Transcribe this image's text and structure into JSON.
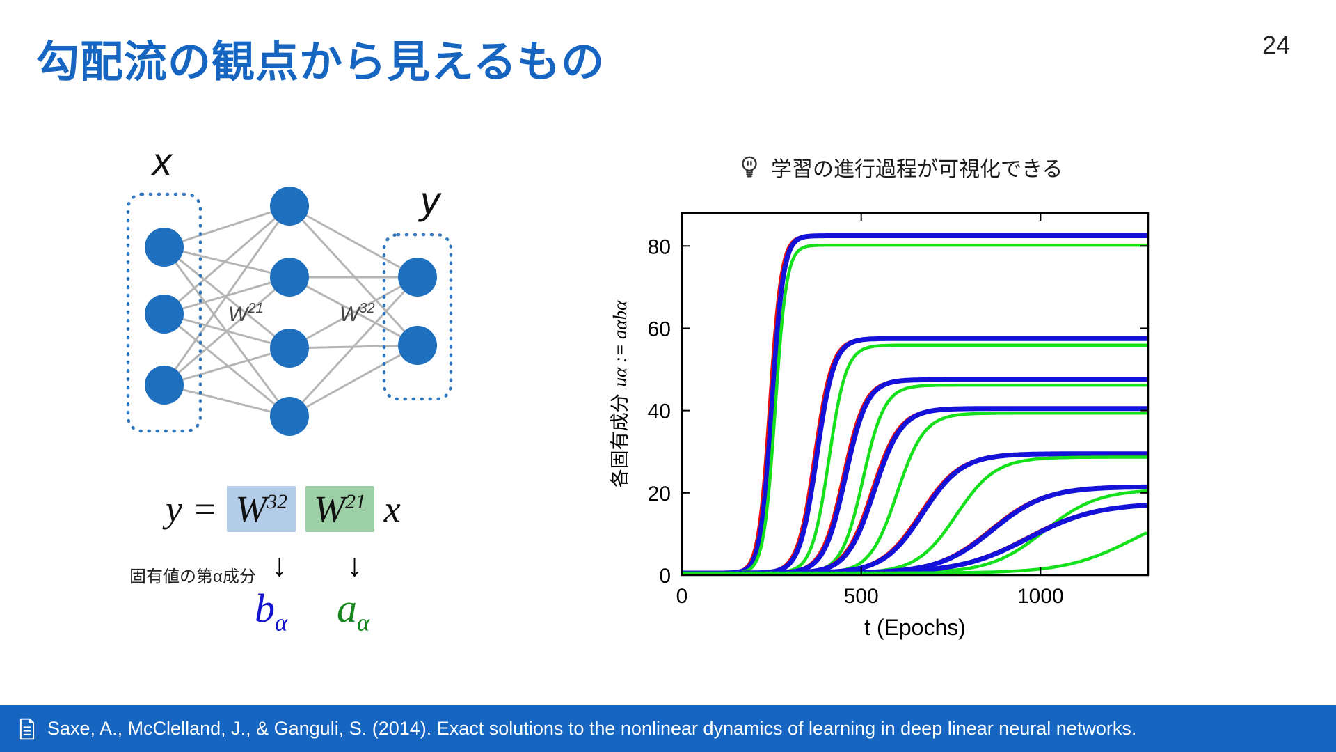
{
  "slide": {
    "title": "勾配流の観点から見えるもの",
    "page_number": "24"
  },
  "colors": {
    "brand_blue": "#1565c1",
    "node_blue": "#1e6fbe",
    "edge_gray": "#b5b5b5",
    "w32_highlight": "#b3cce8",
    "w21_highlight": "#9ed0a8",
    "b_alpha_blue": "#1313cf",
    "a_alpha_green": "#15871c"
  },
  "icons": {
    "insight": "lightbulb-icon",
    "footer": "document-icon"
  },
  "network": {
    "input_label": "x",
    "output_label": "y",
    "w21": {
      "base": "W",
      "sup": "21"
    },
    "w32": {
      "base": "W",
      "sup": "32"
    }
  },
  "equation": {
    "lhs": "y",
    "equals": "=",
    "w32": {
      "base": "W",
      "sup": "32"
    },
    "w21": {
      "base": "W",
      "sup": "21"
    },
    "rhs": "x",
    "annotation": "固有値の第α成分",
    "arrow_glyph": "↓",
    "b_alpha": {
      "base": "b",
      "sub": "α"
    },
    "a_alpha": {
      "base": "a",
      "sub": "α"
    }
  },
  "insight": {
    "text": "学習の進行過程が可視化できる"
  },
  "chart_data": {
    "type": "line",
    "title": "",
    "xlabel": "t (Epochs)",
    "ylabel": "各固有成分 uα := aαbα",
    "ylabel_cjk": "各固有成分",
    "ylabel_math": "uα := aαbα",
    "xlim": [
      0,
      1300
    ],
    "ylim": [
      0,
      88
    ],
    "xticks": [
      0,
      500,
      1000
    ],
    "yticks": [
      0,
      20,
      40,
      60,
      80
    ],
    "grid": false,
    "line_colors": {
      "red": "#e81310",
      "blue": "#1412d8",
      "green": "#16df1c"
    },
    "modes": [
      {
        "plateau": 82,
        "t_mid": 245,
        "tau": 16,
        "green_delay": 15
      },
      {
        "plateau": 57,
        "t_mid": 370,
        "tau": 24,
        "green_delay": 40
      },
      {
        "plateau": 47,
        "t_mid": 450,
        "tau": 30,
        "green_delay": 55
      },
      {
        "plateau": 40,
        "t_mid": 530,
        "tau": 38,
        "green_delay": 70
      },
      {
        "plateau": 29,
        "t_mid": 665,
        "tau": 55,
        "green_delay": 100
      },
      {
        "plateau": 21,
        "t_mid": 860,
        "tau": 75,
        "green_delay": 150
      },
      {
        "plateau": 17,
        "t_mid": 960,
        "tau": 95,
        "green_delay": 300
      }
    ]
  },
  "footer": {
    "citation": "Saxe, A., McClelland, J., & Ganguli, S. (2014). Exact solutions to the nonlinear dynamics of learning in deep linear neural networks."
  }
}
